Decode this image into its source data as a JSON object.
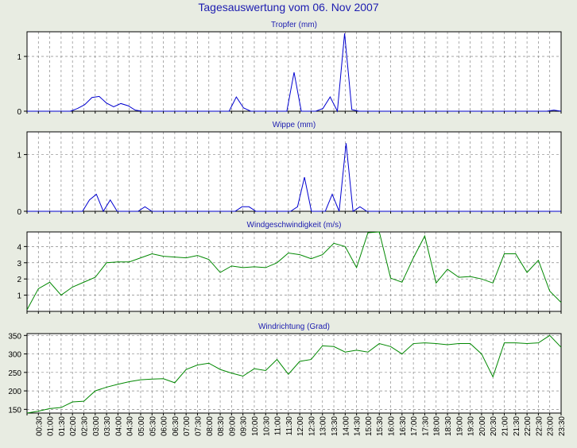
{
  "page": {
    "title": "Tagesauswertung vom 06. Nov 2007"
  },
  "colors": {
    "background": "#e8ece2",
    "title": "#1c1cb0",
    "blue_series": "#0000d0",
    "green_series": "#008800",
    "grid": "#888888"
  },
  "time_labels": [
    "00:30",
    "01:00",
    "01:30",
    "02:00",
    "02:30",
    "03:00",
    "03:30",
    "04:00",
    "04:30",
    "05:00",
    "05:30",
    "06:00",
    "06:30",
    "07:00",
    "07:30",
    "08:00",
    "08:30",
    "09:00",
    "09:30",
    "10:00",
    "10:30",
    "11:00",
    "11:30",
    "12:00",
    "12:30",
    "13:00",
    "13:30",
    "14:00",
    "14:30",
    "15:00",
    "15:30",
    "16:00",
    "16:30",
    "17:00",
    "17:30",
    "18:00",
    "18:30",
    "19:00",
    "19:30",
    "20:00",
    "20:30",
    "21:00",
    "21:30",
    "22:00",
    "22:30",
    "23:00",
    "23:30"
  ],
  "chart_data": [
    {
      "type": "line",
      "title": "Tropfer (mm)",
      "x_start": "00:00",
      "x_end": "23:30",
      "x_step_minutes": 30,
      "ylim": [
        0,
        1.45
      ],
      "yticks": [
        0,
        1
      ],
      "ytick_labels": [
        "0",
        "1"
      ],
      "grid": true,
      "series": [
        {
          "color": "#0000d0",
          "values": [
            0,
            0,
            0,
            0,
            0,
            0,
            0,
            0.05,
            0.12,
            0.25,
            0.27,
            0.15,
            0.08,
            0.14,
            0.1,
            0.02,
            0,
            0,
            0,
            0,
            0,
            0,
            0,
            0,
            0,
            0,
            0,
            0,
            0,
            0.26,
            0.06,
            0,
            0,
            0,
            0,
            0,
            0,
            0.71,
            0,
            0,
            0,
            0.05,
            0.26,
            0,
            1.42,
            0.03,
            0,
            0,
            0,
            0,
            0,
            0,
            0,
            0,
            0,
            0,
            0,
            0,
            0,
            0,
            0,
            0,
            0,
            0,
            0,
            0,
            0,
            0,
            0,
            0,
            0,
            0,
            0,
            0.02,
            0
          ]
        }
      ]
    },
    {
      "type": "line",
      "title": "Wippe (mm)",
      "x_start": "00:00",
      "x_end": "23:30",
      "x_step_minutes": 30,
      "ylim": [
        0,
        1.4
      ],
      "yticks": [
        0,
        1
      ],
      "ytick_labels": [
        "0",
        "1"
      ],
      "grid": true,
      "series": [
        {
          "color": "#0000d0",
          "values": [
            0,
            0,
            0,
            0,
            0,
            0,
            0,
            0,
            0,
            0.2,
            0.3,
            0,
            0.2,
            0,
            0,
            0,
            0,
            0.08,
            0,
            0,
            0,
            0,
            0,
            0,
            0,
            0,
            0,
            0,
            0,
            0,
            0,
            0.08,
            0.08,
            0,
            0,
            0,
            0,
            0,
            0,
            0.08,
            0.6,
            0,
            0,
            0,
            0.3,
            0,
            1.2,
            0,
            0.08,
            0,
            0,
            0,
            0,
            0,
            0,
            0,
            0,
            0,
            0,
            0,
            0,
            0,
            0,
            0,
            0,
            0,
            0,
            0,
            0,
            0,
            0,
            0,
            0,
            0,
            0,
            0,
            0,
            0
          ]
        }
      ]
    },
    {
      "type": "line",
      "title": "Windgeschwindigkeit (m/s)",
      "x_start": "00:00",
      "x_end": "23:30",
      "x_step_minutes": 30,
      "ylim": [
        0,
        4.9
      ],
      "yticks": [
        1,
        2,
        3,
        4
      ],
      "ytick_labels": [
        "1",
        "2",
        "3",
        "4"
      ],
      "grid": true,
      "series": [
        {
          "color": "#008800",
          "values": [
            0.1,
            1.4,
            1.8,
            1.0,
            1.5,
            1.8,
            2.1,
            3.0,
            3.05,
            3.05,
            3.3,
            3.55,
            3.4,
            3.35,
            3.3,
            3.45,
            3.2,
            2.4,
            2.8,
            2.7,
            2.75,
            2.7,
            3.0,
            3.6,
            3.5,
            3.25,
            3.5,
            4.2,
            4.0,
            2.7,
            4.85,
            4.9,
            2.05,
            1.8,
            3.3,
            4.65,
            1.75,
            2.6,
            2.1,
            2.15,
            2.0,
            1.75,
            3.55,
            3.55,
            2.4,
            3.15,
            1.25,
            0.55
          ]
        }
      ]
    },
    {
      "type": "line",
      "title": "Windrichtung (Grad)",
      "x_start": "00:00",
      "x_end": "23:30",
      "x_step_minutes": 30,
      "ylim": [
        140,
        355
      ],
      "yticks": [
        150,
        200,
        250,
        300,
        350
      ],
      "ytick_labels": [
        "150",
        "200",
        "250",
        "300",
        "350"
      ],
      "grid": true,
      "series": [
        {
          "color": "#008800",
          "values": [
            140,
            145,
            152,
            155,
            170,
            172,
            200,
            210,
            218,
            225,
            230,
            232,
            233,
            222,
            258,
            270,
            275,
            258,
            248,
            240,
            260,
            255,
            285,
            245,
            280,
            285,
            322,
            320,
            305,
            310,
            305,
            328,
            320,
            300,
            328,
            330,
            328,
            325,
            328,
            328,
            300,
            238,
            330,
            330,
            328,
            330,
            350,
            318
          ]
        }
      ]
    }
  ]
}
